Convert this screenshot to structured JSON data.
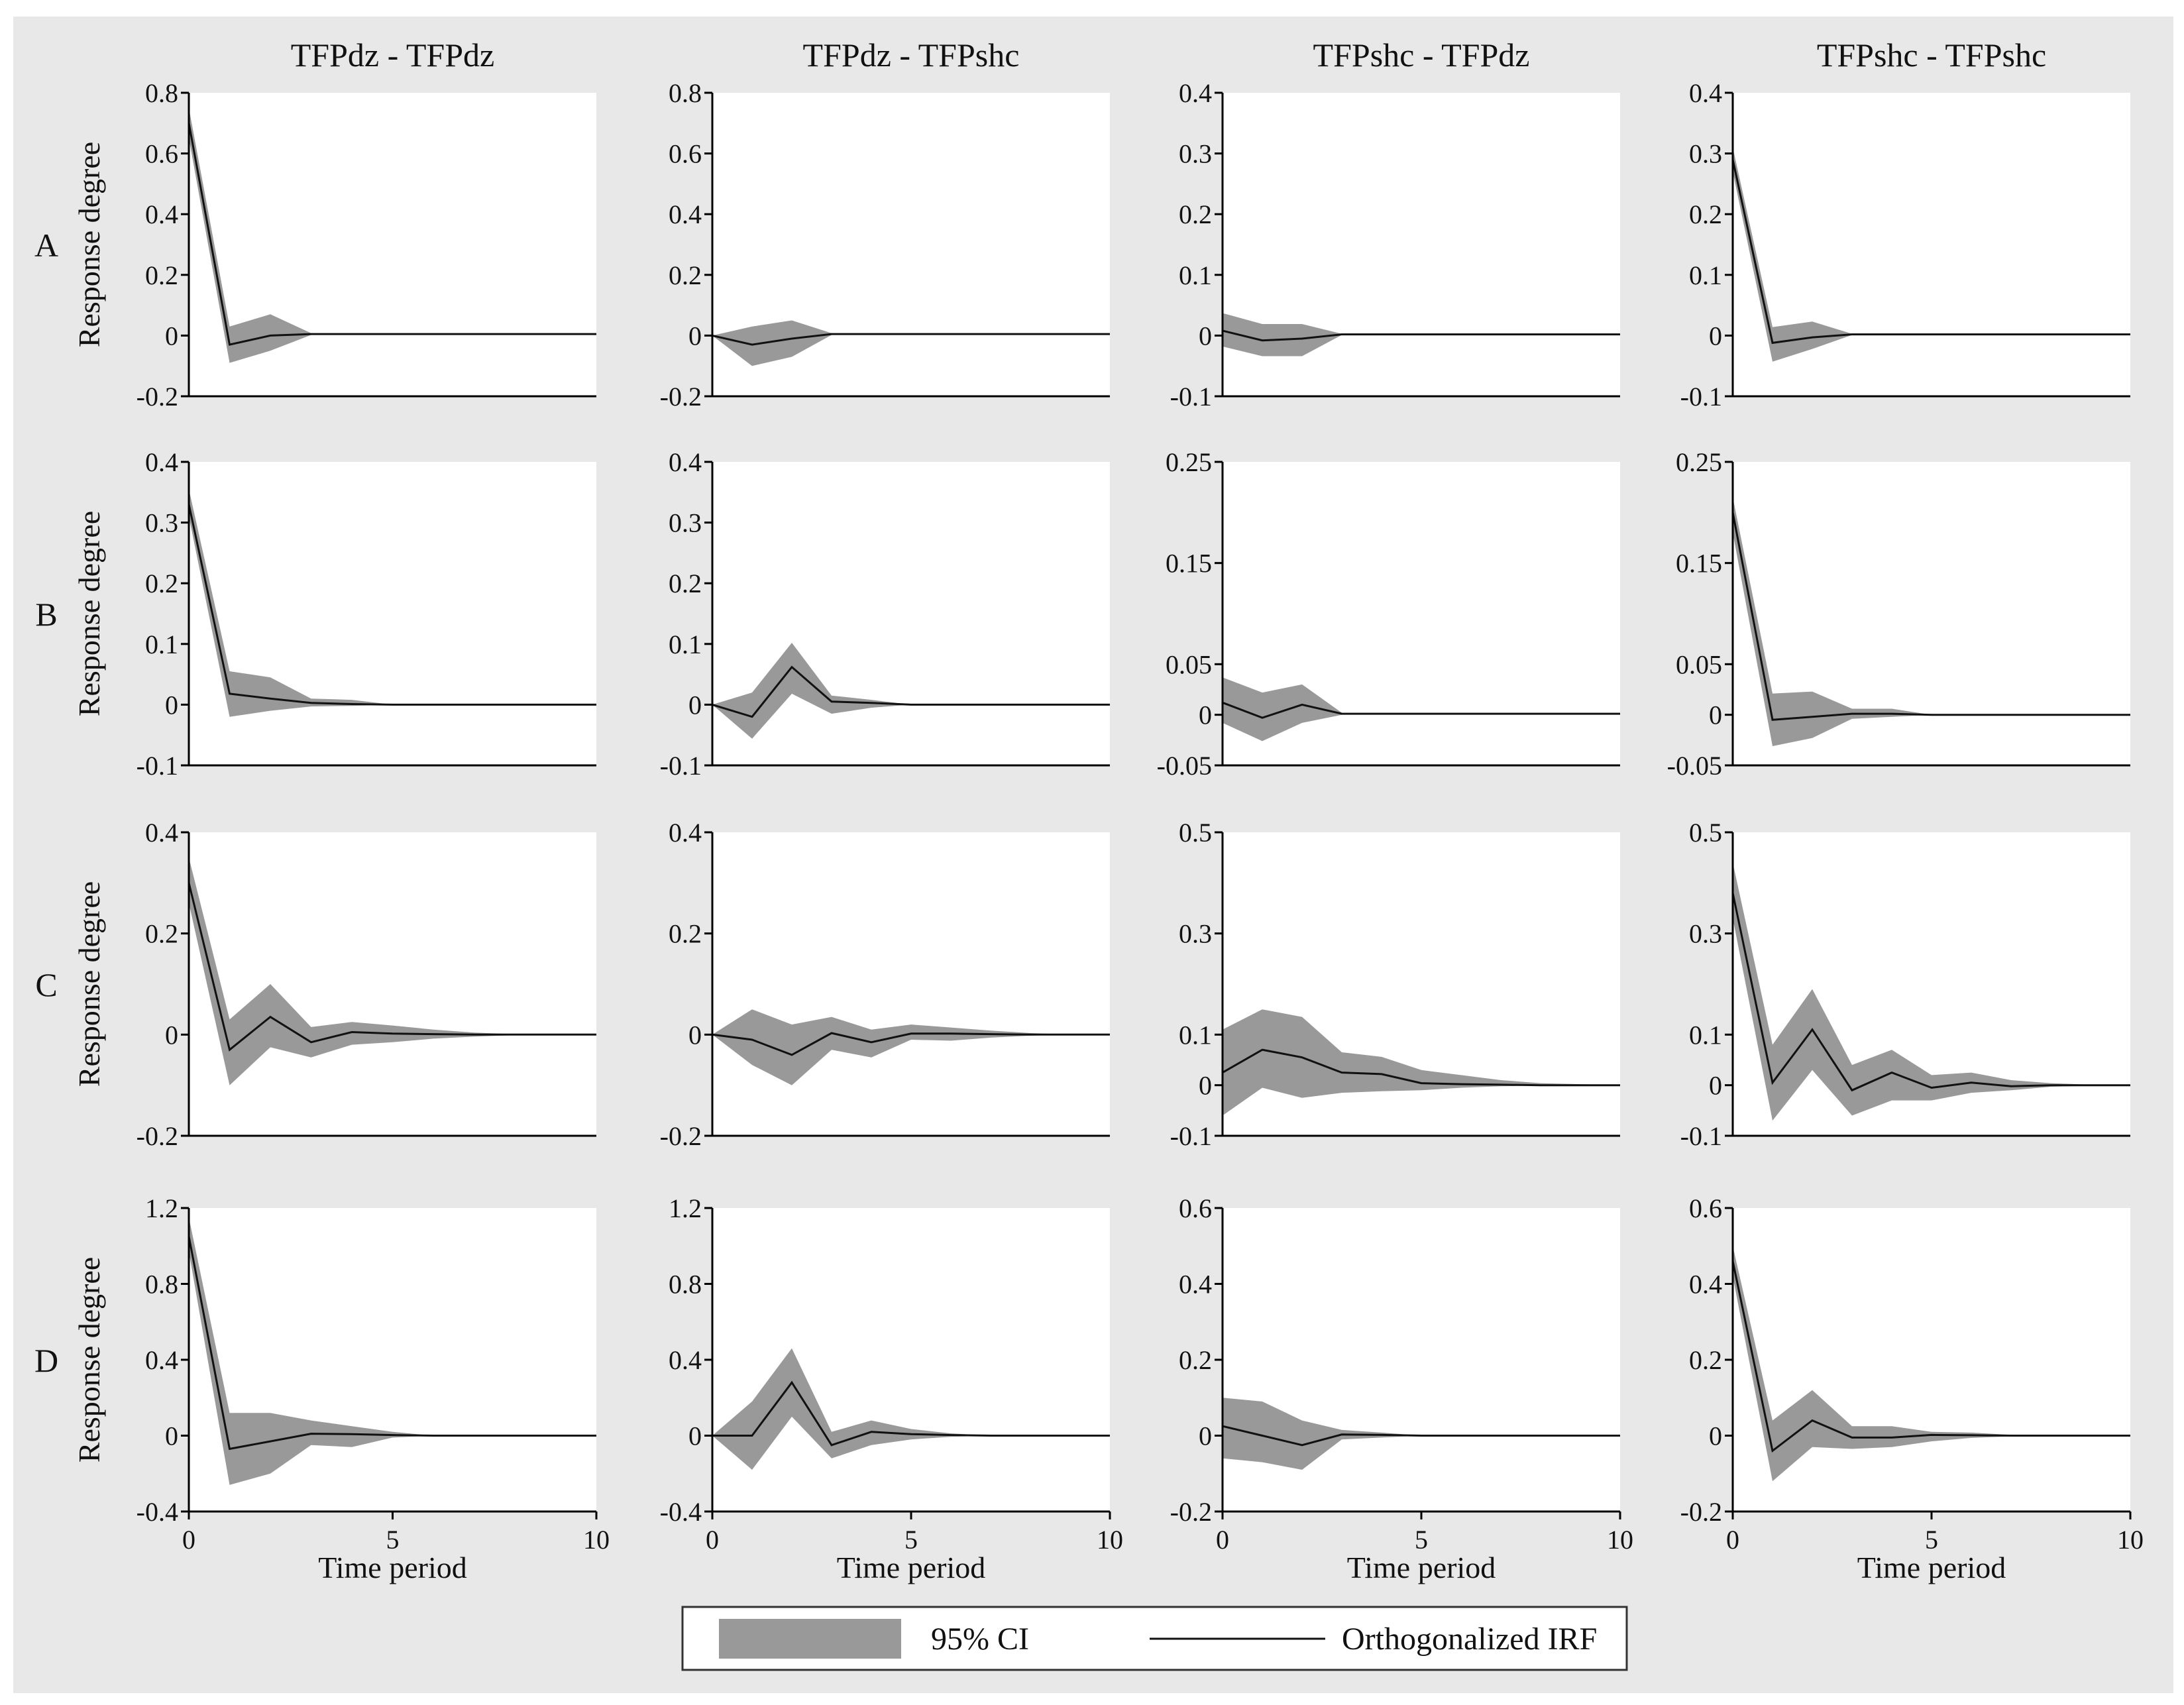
{
  "colors": {
    "background": "#e8e8e8",
    "panel": "#ffffff",
    "ci_fill": "#999999",
    "irf_line": "#111111"
  },
  "legend": {
    "ci_label": "95% CI",
    "irf_label": "Orthogonalized IRF"
  },
  "chart_data": {
    "type": "line",
    "description_title": "Impulse response functions (4 regions x 4 impulse-response pairs)",
    "columns": [
      "TFPdz - TFPdz",
      "TFPdz - TFPshc",
      "TFPshc - TFPdz",
      "TFPshc - TFPshc"
    ],
    "rows": [
      "A",
      "B",
      "C",
      "D"
    ],
    "xlabel": "Time period",
    "ylabel": "Response degree",
    "xlim": [
      0,
      10
    ],
    "xticks": [
      0,
      5,
      10
    ],
    "panels": [
      {
        "row": "A",
        "col": "TFPdz - TFPdz",
        "ylim": [
          -0.2,
          0.8
        ],
        "yticks": [
          -0.2,
          0,
          0.2,
          0.4,
          0.6,
          0.8
        ],
        "ytick_labels": [
          "-0.2",
          "0",
          "0.2",
          "0.4",
          "0.6",
          "0.8"
        ],
        "x": [
          0,
          1,
          2,
          3
        ],
        "irf": [
          0.7,
          -0.03,
          0,
          0.005
        ],
        "ci_lower": [
          0.65,
          -0.09,
          -0.05,
          0.002
        ],
        "ci_upper": [
          0.75,
          0.03,
          0.07,
          0.008
        ]
      },
      {
        "row": "A",
        "col": "TFPdz - TFPshc",
        "ylim": [
          -0.2,
          0.8
        ],
        "yticks": [
          -0.2,
          0,
          0.2,
          0.4,
          0.6,
          0.8
        ],
        "ytick_labels": [
          "-0.2",
          "0",
          "0.2",
          "0.4",
          "0.6",
          "0.8"
        ],
        "x": [
          0,
          1,
          2,
          3
        ],
        "irf": [
          0,
          -0.03,
          -0.01,
          0.005
        ],
        "ci_lower": [
          0,
          -0.1,
          -0.07,
          0.002
        ],
        "ci_upper": [
          0,
          0.03,
          0.05,
          0.008
        ]
      },
      {
        "row": "A",
        "col": "TFPshc - TFPdz",
        "ylim": [
          -0.1,
          0.4
        ],
        "yticks": [
          -0.1,
          0,
          0.1,
          0.2,
          0.3,
          0.4
        ],
        "ytick_labels": [
          "-0.1",
          "0",
          "0.1",
          "0.2",
          "0.3",
          "0.4"
        ],
        "x": [
          0,
          1,
          2,
          3
        ],
        "irf": [
          0.008,
          -0.008,
          -0.005,
          0.002
        ],
        "ci_lower": [
          -0.018,
          -0.034,
          -0.034,
          0.001
        ],
        "ci_upper": [
          0.037,
          0.019,
          0.019,
          0.003
        ]
      },
      {
        "row": "A",
        "col": "TFPshc - TFPshc",
        "ylim": [
          -0.1,
          0.4
        ],
        "yticks": [
          -0.1,
          0,
          0.1,
          0.2,
          0.3,
          0.4
        ],
        "ytick_labels": [
          "-0.1",
          "0",
          "0.1",
          "0.2",
          "0.3",
          "0.4"
        ],
        "x": [
          0,
          1,
          2,
          3
        ],
        "irf": [
          0.29,
          -0.012,
          -0.003,
          0.002
        ],
        "ci_lower": [
          0.27,
          -0.043,
          -0.022,
          0.001
        ],
        "ci_upper": [
          0.31,
          0.014,
          0.023,
          0.003
        ]
      },
      {
        "row": "B",
        "col": "TFPdz - TFPdz",
        "ylim": [
          -0.1,
          0.4
        ],
        "yticks": [
          -0.1,
          0,
          0.1,
          0.2,
          0.3,
          0.4
        ],
        "ytick_labels": [
          "-0.1",
          "0",
          "0.1",
          "0.2",
          "0.3",
          "0.4"
        ],
        "x": [
          0,
          1,
          2,
          3,
          4,
          5
        ],
        "irf": [
          0.33,
          0.018,
          0.01,
          0.003,
          0.001,
          0
        ],
        "ci_lower": [
          0.31,
          -0.02,
          -0.01,
          -0.003,
          -0.002,
          0
        ],
        "ci_upper": [
          0.355,
          0.055,
          0.045,
          0.01,
          0.008,
          0
        ]
      },
      {
        "row": "B",
        "col": "TFPdz - TFPshc",
        "ylim": [
          -0.1,
          0.4
        ],
        "yticks": [
          -0.1,
          0,
          0.1,
          0.2,
          0.3,
          0.4
        ],
        "ytick_labels": [
          "-0.1",
          "0",
          "0.1",
          "0.2",
          "0.3",
          "0.4"
        ],
        "x": [
          0,
          1,
          2,
          3,
          4,
          5
        ],
        "irf": [
          0,
          -0.02,
          0.062,
          0.005,
          0.003,
          0
        ],
        "ci_lower": [
          0,
          -0.056,
          0.018,
          -0.015,
          -0.005,
          0
        ],
        "ci_upper": [
          0,
          0.02,
          0.102,
          0.015,
          0.008,
          0
        ]
      },
      {
        "row": "B",
        "col": "TFPshc - TFPdz",
        "ylim": [
          -0.05,
          0.25
        ],
        "yticks": [
          -0.05,
          0,
          0.05,
          0.15,
          0.25
        ],
        "ytick_labels": [
          "-0.05",
          "0",
          "0.05",
          "0.15",
          "0.25"
        ],
        "x": [
          0,
          1,
          2,
          3
        ],
        "irf": [
          0.012,
          -0.003,
          0.01,
          0.001
        ],
        "ci_lower": [
          -0.008,
          -0.026,
          -0.008,
          0
        ],
        "ci_upper": [
          0.037,
          0.022,
          0.03,
          0.002
        ]
      },
      {
        "row": "B",
        "col": "TFPshc - TFPshc",
        "ylim": [
          -0.05,
          0.25
        ],
        "yticks": [
          -0.05,
          0,
          0.05,
          0.15,
          0.25
        ],
        "ytick_labels": [
          "-0.05",
          "0",
          "0.05",
          "0.15",
          "0.25"
        ],
        "x": [
          0,
          1,
          2,
          3,
          4,
          5
        ],
        "irf": [
          0.2,
          -0.005,
          -0.002,
          0.001,
          0.001,
          0
        ],
        "ci_lower": [
          0.18,
          -0.031,
          -0.023,
          -0.004,
          -0.002,
          0
        ],
        "ci_upper": [
          0.215,
          0.021,
          0.023,
          0.006,
          0.006,
          0
        ]
      },
      {
        "row": "C",
        "col": "TFPdz - TFPdz",
        "ylim": [
          -0.2,
          0.4
        ],
        "yticks": [
          -0.2,
          0,
          0.2,
          0.4
        ],
        "ytick_labels": [
          "-0.2",
          "0",
          "0.2",
          "0.4"
        ],
        "x": [
          0,
          1,
          2,
          3,
          4,
          5,
          6,
          7,
          8,
          9,
          10
        ],
        "irf": [
          0.3,
          -0.03,
          0.035,
          -0.015,
          0.005,
          0.002,
          0.001,
          0,
          0,
          0,
          0
        ],
        "ci_lower": [
          0.26,
          -0.1,
          -0.025,
          -0.045,
          -0.02,
          -0.015,
          -0.008,
          -0.004,
          -0.001,
          0,
          0
        ],
        "ci_upper": [
          0.35,
          0.03,
          0.1,
          0.015,
          0.025,
          0.018,
          0.01,
          0.004,
          0.001,
          0,
          0
        ]
      },
      {
        "row": "C",
        "col": "TFPdz - TFPshc",
        "ylim": [
          -0.2,
          0.4
        ],
        "yticks": [
          -0.2,
          0,
          0.2,
          0.4
        ],
        "ytick_labels": [
          "-0.2",
          "0",
          "0.2",
          "0.4"
        ],
        "x": [
          0,
          1,
          2,
          3,
          4,
          5,
          6,
          7,
          8,
          9,
          10
        ],
        "irf": [
          0,
          -0.01,
          -0.04,
          0.003,
          -0.015,
          0.002,
          0.002,
          0.001,
          0,
          0,
          0
        ],
        "ci_lower": [
          0,
          -0.06,
          -0.1,
          -0.03,
          -0.045,
          -0.01,
          -0.012,
          -0.006,
          -0.002,
          0,
          0
        ],
        "ci_upper": [
          0,
          0.05,
          0.02,
          0.035,
          0.01,
          0.02,
          0.014,
          0.008,
          0.003,
          0,
          0
        ]
      },
      {
        "row": "C",
        "col": "TFPshc - TFPdz",
        "ylim": [
          -0.1,
          0.5
        ],
        "yticks": [
          -0.1,
          0,
          0.1,
          0.3,
          0.5
        ],
        "ytick_labels": [
          "-0.1",
          "0",
          "0.1",
          "0.3",
          "0.5"
        ],
        "x": [
          0,
          1,
          2,
          3,
          4,
          5,
          6,
          7,
          8,
          9,
          10
        ],
        "irf": [
          0.025,
          0.07,
          0.055,
          0.025,
          0.022,
          0.004,
          0.002,
          0.001,
          0,
          0,
          0
        ],
        "ci_lower": [
          -0.06,
          -0.005,
          -0.025,
          -0.015,
          -0.012,
          -0.01,
          -0.005,
          -0.002,
          -0.001,
          0,
          0
        ],
        "ci_upper": [
          0.11,
          0.15,
          0.135,
          0.065,
          0.056,
          0.03,
          0.02,
          0.01,
          0.004,
          0.002,
          0
        ]
      },
      {
        "row": "C",
        "col": "TFPshc - TFPshc",
        "ylim": [
          -0.1,
          0.5
        ],
        "yticks": [
          -0.1,
          0,
          0.1,
          0.3,
          0.5
        ],
        "ytick_labels": [
          "-0.1",
          "0",
          "0.1",
          "0.3",
          "0.5"
        ],
        "x": [
          0,
          1,
          2,
          3,
          4,
          5,
          6,
          7,
          8,
          9,
          10
        ],
        "irf": [
          0.38,
          0.005,
          0.11,
          -0.01,
          0.025,
          -0.005,
          0.005,
          -0.002,
          0,
          0,
          0
        ],
        "ci_lower": [
          0.33,
          -0.07,
          0.03,
          -0.06,
          -0.03,
          -0.03,
          -0.015,
          -0.01,
          -0.003,
          -0.001,
          0
        ],
        "ci_upper": [
          0.44,
          0.08,
          0.19,
          0.04,
          0.07,
          0.02,
          0.025,
          0.01,
          0.004,
          0.001,
          0
        ]
      },
      {
        "row": "D",
        "col": "TFPdz - TFPdz",
        "ylim": [
          -0.4,
          1.2
        ],
        "yticks": [
          -0.4,
          0,
          0.4,
          0.8,
          1.2
        ],
        "ytick_labels": [
          "-0.4",
          "0",
          "0.4",
          "0.8",
          "1.2"
        ],
        "x": [
          0,
          1,
          2,
          3,
          4,
          5,
          6
        ],
        "irf": [
          1.05,
          -0.07,
          -0.03,
          0.01,
          0.008,
          0.003,
          0
        ],
        "ci_lower": [
          0.97,
          -0.26,
          -0.2,
          -0.05,
          -0.06,
          -0.01,
          0
        ],
        "ci_upper": [
          1.15,
          0.12,
          0.12,
          0.08,
          0.05,
          0.02,
          0
        ]
      },
      {
        "row": "D",
        "col": "TFPdz - TFPshc",
        "ylim": [
          -0.4,
          1.2
        ],
        "yticks": [
          -0.4,
          0,
          0.4,
          0.8,
          1.2
        ],
        "ytick_labels": [
          "-0.4",
          "0",
          "0.4",
          "0.8",
          "1.2"
        ],
        "x": [
          0,
          1,
          2,
          3,
          4,
          5,
          6,
          7
        ],
        "irf": [
          0,
          0,
          0.28,
          -0.05,
          0.02,
          0.008,
          0.003,
          0
        ],
        "ci_lower": [
          0,
          -0.18,
          0.1,
          -0.12,
          -0.05,
          -0.02,
          -0.006,
          0
        ],
        "ci_upper": [
          0,
          0.18,
          0.46,
          0.02,
          0.08,
          0.035,
          0.012,
          0
        ]
      },
      {
        "row": "D",
        "col": "TFPshc - TFPdz",
        "ylim": [
          -0.2,
          0.6
        ],
        "yticks": [
          -0.2,
          0,
          0.2,
          0.4,
          0.6
        ],
        "ytick_labels": [
          "-0.2",
          "0",
          "0.2",
          "0.4",
          "0.6"
        ],
        "x": [
          0,
          1,
          2,
          3,
          4,
          5
        ],
        "irf": [
          0.025,
          0,
          -0.025,
          0.003,
          0.002,
          0
        ],
        "ci_lower": [
          -0.06,
          -0.07,
          -0.09,
          -0.01,
          -0.005,
          0
        ],
        "ci_upper": [
          0.1,
          0.09,
          0.04,
          0.015,
          0.008,
          0
        ]
      },
      {
        "row": "D",
        "col": "TFPshc - TFPshc",
        "ylim": [
          -0.2,
          0.6
        ],
        "yticks": [
          -0.2,
          0,
          0.2,
          0.4,
          0.6
        ],
        "ytick_labels": [
          "-0.2",
          "0",
          "0.2",
          "0.4",
          "0.6"
        ],
        "x": [
          0,
          1,
          2,
          3,
          4,
          5,
          6,
          7
        ],
        "irf": [
          0.46,
          -0.04,
          0.04,
          -0.005,
          -0.005,
          0.002,
          0.001,
          0
        ],
        "ci_lower": [
          0.42,
          -0.12,
          -0.03,
          -0.035,
          -0.03,
          -0.015,
          -0.006,
          -0.002
        ],
        "ci_upper": [
          0.5,
          0.04,
          0.12,
          0.025,
          0.025,
          0.01,
          0.008,
          0.002
        ]
      }
    ]
  }
}
